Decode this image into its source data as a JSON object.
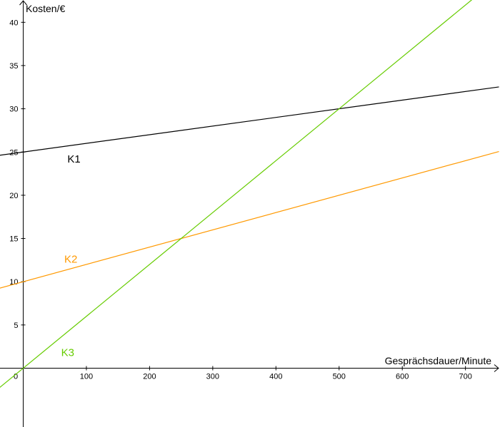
{
  "chart_data": {
    "type": "line",
    "xlabel": "Gesprächsdauer/Minute",
    "ylabel": "Kosten/€",
    "xlim": [
      -37,
      753
    ],
    "ylim": [
      -2.2,
      42.3
    ],
    "x_ticks": [
      0,
      100,
      200,
      300,
      400,
      500,
      600,
      700
    ],
    "y_ticks": [
      5,
      10,
      15,
      20,
      25,
      30,
      35,
      40
    ],
    "grid": false,
    "series": [
      {
        "name": "K1",
        "x": [
          -37,
          753
        ],
        "y": [
          24.63,
          32.53
        ],
        "color": "#000000",
        "label_at": [
          70,
          23.8
        ]
      },
      {
        "name": "K2",
        "x": [
          -37,
          753
        ],
        "y": [
          9.26,
          25.06
        ],
        "color": "#ff9900",
        "label_at": [
          65,
          12.2
        ]
      },
      {
        "name": "K3",
        "x": [
          -37,
          710
        ],
        "y": [
          -2.22,
          42.6
        ],
        "color": "#66cc00",
        "label_at": [
          60,
          1.4
        ]
      }
    ]
  }
}
